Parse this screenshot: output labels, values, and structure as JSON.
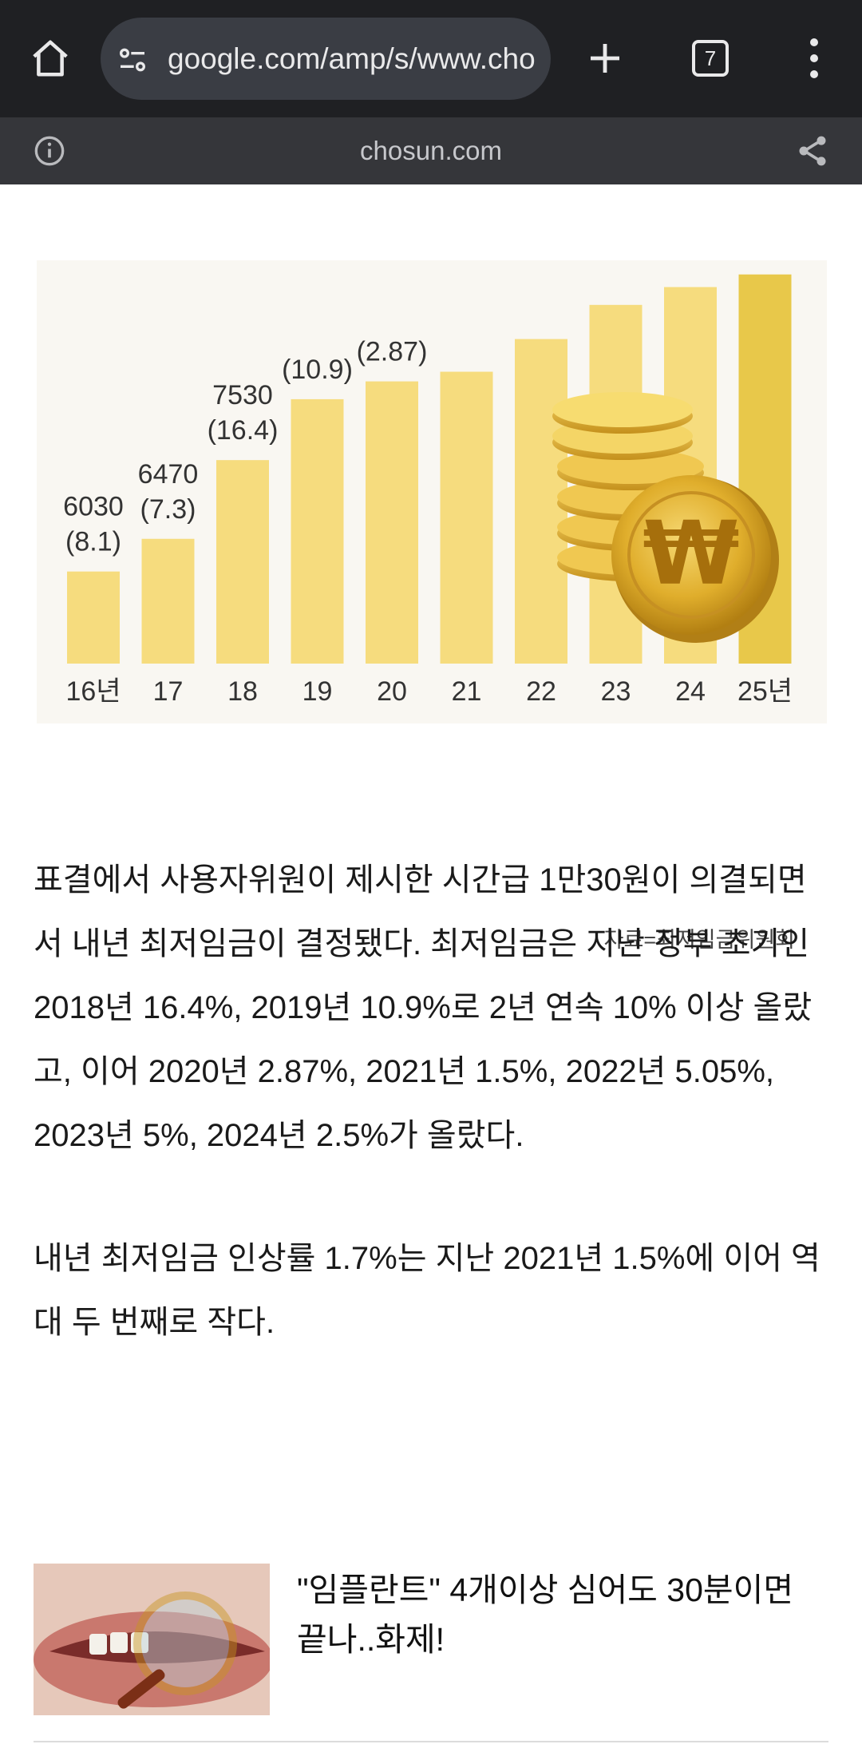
{
  "browser": {
    "url": "google.com/amp/s/www.cho",
    "tab_count": "7",
    "site_domain": "chosun.com"
  },
  "chart_data": {
    "type": "bar",
    "categories": [
      "16년",
      "17",
      "18",
      "19",
      "20",
      "21",
      "22",
      "23",
      "24",
      "25년"
    ],
    "values": [
      6030,
      6470,
      7530,
      8350,
      8590,
      8720,
      9160,
      9620,
      9860,
      10030
    ],
    "visible_labels": [
      {
        "value": "6030",
        "pct": "(8.1)"
      },
      {
        "value": "6470",
        "pct": "(7.3)"
      },
      {
        "value": "7530",
        "pct": "(16.4)"
      },
      {
        "value": "",
        "pct": "(10.9)"
      },
      {
        "value": "",
        "pct": "(2.87)"
      }
    ],
    "source": "자료=최저임금위원회",
    "colors": {
      "bar": "#f6dc7e",
      "highlight": "#e8c84a",
      "background_shade": "#f9f7f2"
    }
  },
  "article": {
    "paragraphs": [
      "표결에서 사용자위원이 제시한 시간급 1만30원이 의결되면서 내년 최저임금이 결정됐다. 최저임금은 지난 정부 초기인 2018년 16.4%, 2019년 10.9%로 2년 연속 10% 이상 올랐고, 이어 2020년 2.87%, 2021년 1.5%, 2022년 5.05%, 2023년 5%, 2024년 2.5%가 올랐다.",
      "내년 최저임금 인상률 1.7%는 지난 2021년 1.5%에 이어 역대 두 번째로 작다."
    ]
  },
  "ad": {
    "headline": "\"임플란트\" 4개이상 심어도 30분이면 끝나..화제!"
  }
}
